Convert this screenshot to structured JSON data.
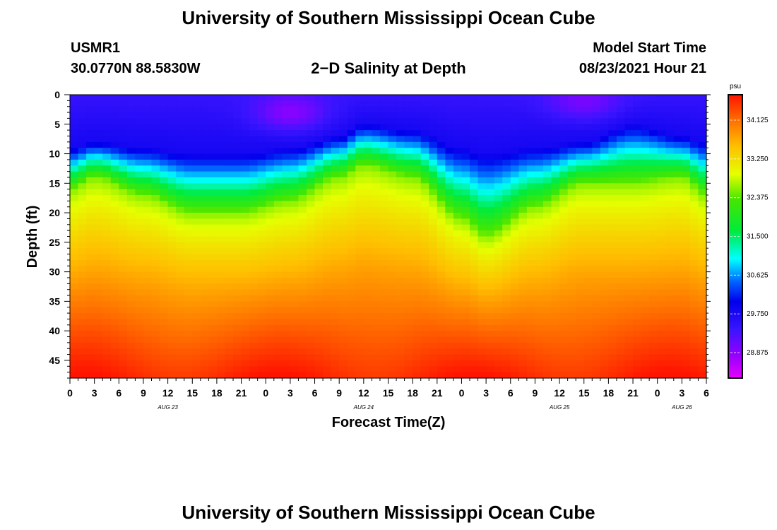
{
  "page": {
    "title_top": "University of Southern Mississippi Ocean Cube",
    "title_bottom": "University of Southern Mississippi Ocean Cube",
    "station_id": "USMR1",
    "coordinates": "30.0770N  88.5830W",
    "subtitle": "2−D Salinity at Depth",
    "model_start_label": "Model Start Time",
    "model_start_value": "08/23/2021 Hour 21"
  },
  "chart_data": {
    "type": "heatmap",
    "title": "2−D Salinity at Depth",
    "xlabel": "Forecast Time(Z)",
    "ylabel": "Depth (ft)",
    "x_tick_labels": [
      "0",
      "3",
      "6",
      "9",
      "12",
      "15",
      "18",
      "21",
      "0",
      "3",
      "6",
      "9",
      "12",
      "15",
      "18",
      "21",
      "0",
      "3",
      "6",
      "9",
      "12",
      "15",
      "18",
      "21",
      "0",
      "3",
      "6"
    ],
    "date_labels": [
      {
        "text": "AUG 23",
        "hours_from_start": 12
      },
      {
        "text": "AUG 24",
        "hours_from_start": 36
      },
      {
        "text": "AUG 25",
        "hours_from_start": 60
      },
      {
        "text": "AUG 26",
        "hours_from_start": 75
      }
    ],
    "xlim": [
      0,
      78
    ],
    "ylim": [
      0,
      48
    ],
    "y_ticks": [
      0,
      5,
      10,
      15,
      20,
      25,
      30,
      35,
      40,
      45
    ],
    "colorbar": {
      "unit": "psu",
      "vmin": 28.3,
      "vmax": 34.7,
      "labels": [
        "34.125",
        "33.250",
        "32.375",
        "31.500",
        "30.625",
        "29.750",
        "28.875"
      ],
      "label_values": [
        34.125,
        33.25,
        32.375,
        31.5,
        30.625,
        29.75,
        28.875
      ]
    },
    "halocline_top_depth_ft": [
      {
        "hour": 0,
        "depth": 9
      },
      {
        "hour": 3,
        "depth": 8
      },
      {
        "hour": 9,
        "depth": 9
      },
      {
        "hour": 15,
        "depth": 10
      },
      {
        "hour": 21,
        "depth": 10
      },
      {
        "hour": 27,
        "depth": 9
      },
      {
        "hour": 33,
        "depth": 7
      },
      {
        "hour": 36,
        "depth": 5
      },
      {
        "hour": 42,
        "depth": 6
      },
      {
        "hour": 48,
        "depth": 9
      },
      {
        "hour": 51,
        "depth": 10
      },
      {
        "hour": 57,
        "depth": 9
      },
      {
        "hour": 63,
        "depth": 8
      },
      {
        "hour": 69,
        "depth": 5
      },
      {
        "hour": 75,
        "depth": 7
      },
      {
        "hour": 78,
        "depth": 8
      }
    ],
    "halocline_center_depth_ft": [
      {
        "hour": 0,
        "depth": 16
      },
      {
        "hour": 3,
        "depth": 14
      },
      {
        "hour": 9,
        "depth": 17
      },
      {
        "hour": 15,
        "depth": 20
      },
      {
        "hour": 21,
        "depth": 20
      },
      {
        "hour": 27,
        "depth": 18
      },
      {
        "hour": 33,
        "depth": 14
      },
      {
        "hour": 36,
        "depth": 12
      },
      {
        "hour": 42,
        "depth": 14
      },
      {
        "hour": 48,
        "depth": 21
      },
      {
        "hour": 51,
        "depth": 24
      },
      {
        "hour": 57,
        "depth": 19
      },
      {
        "hour": 63,
        "depth": 15
      },
      {
        "hour": 69,
        "depth": 15
      },
      {
        "hour": 75,
        "depth": 14
      },
      {
        "hour": 78,
        "depth": 17
      }
    ],
    "fresh_spots": [
      {
        "hour": 27,
        "depth": 3,
        "value": 28.9
      },
      {
        "hour": 63,
        "depth": 1,
        "value": 29.0
      }
    ]
  }
}
